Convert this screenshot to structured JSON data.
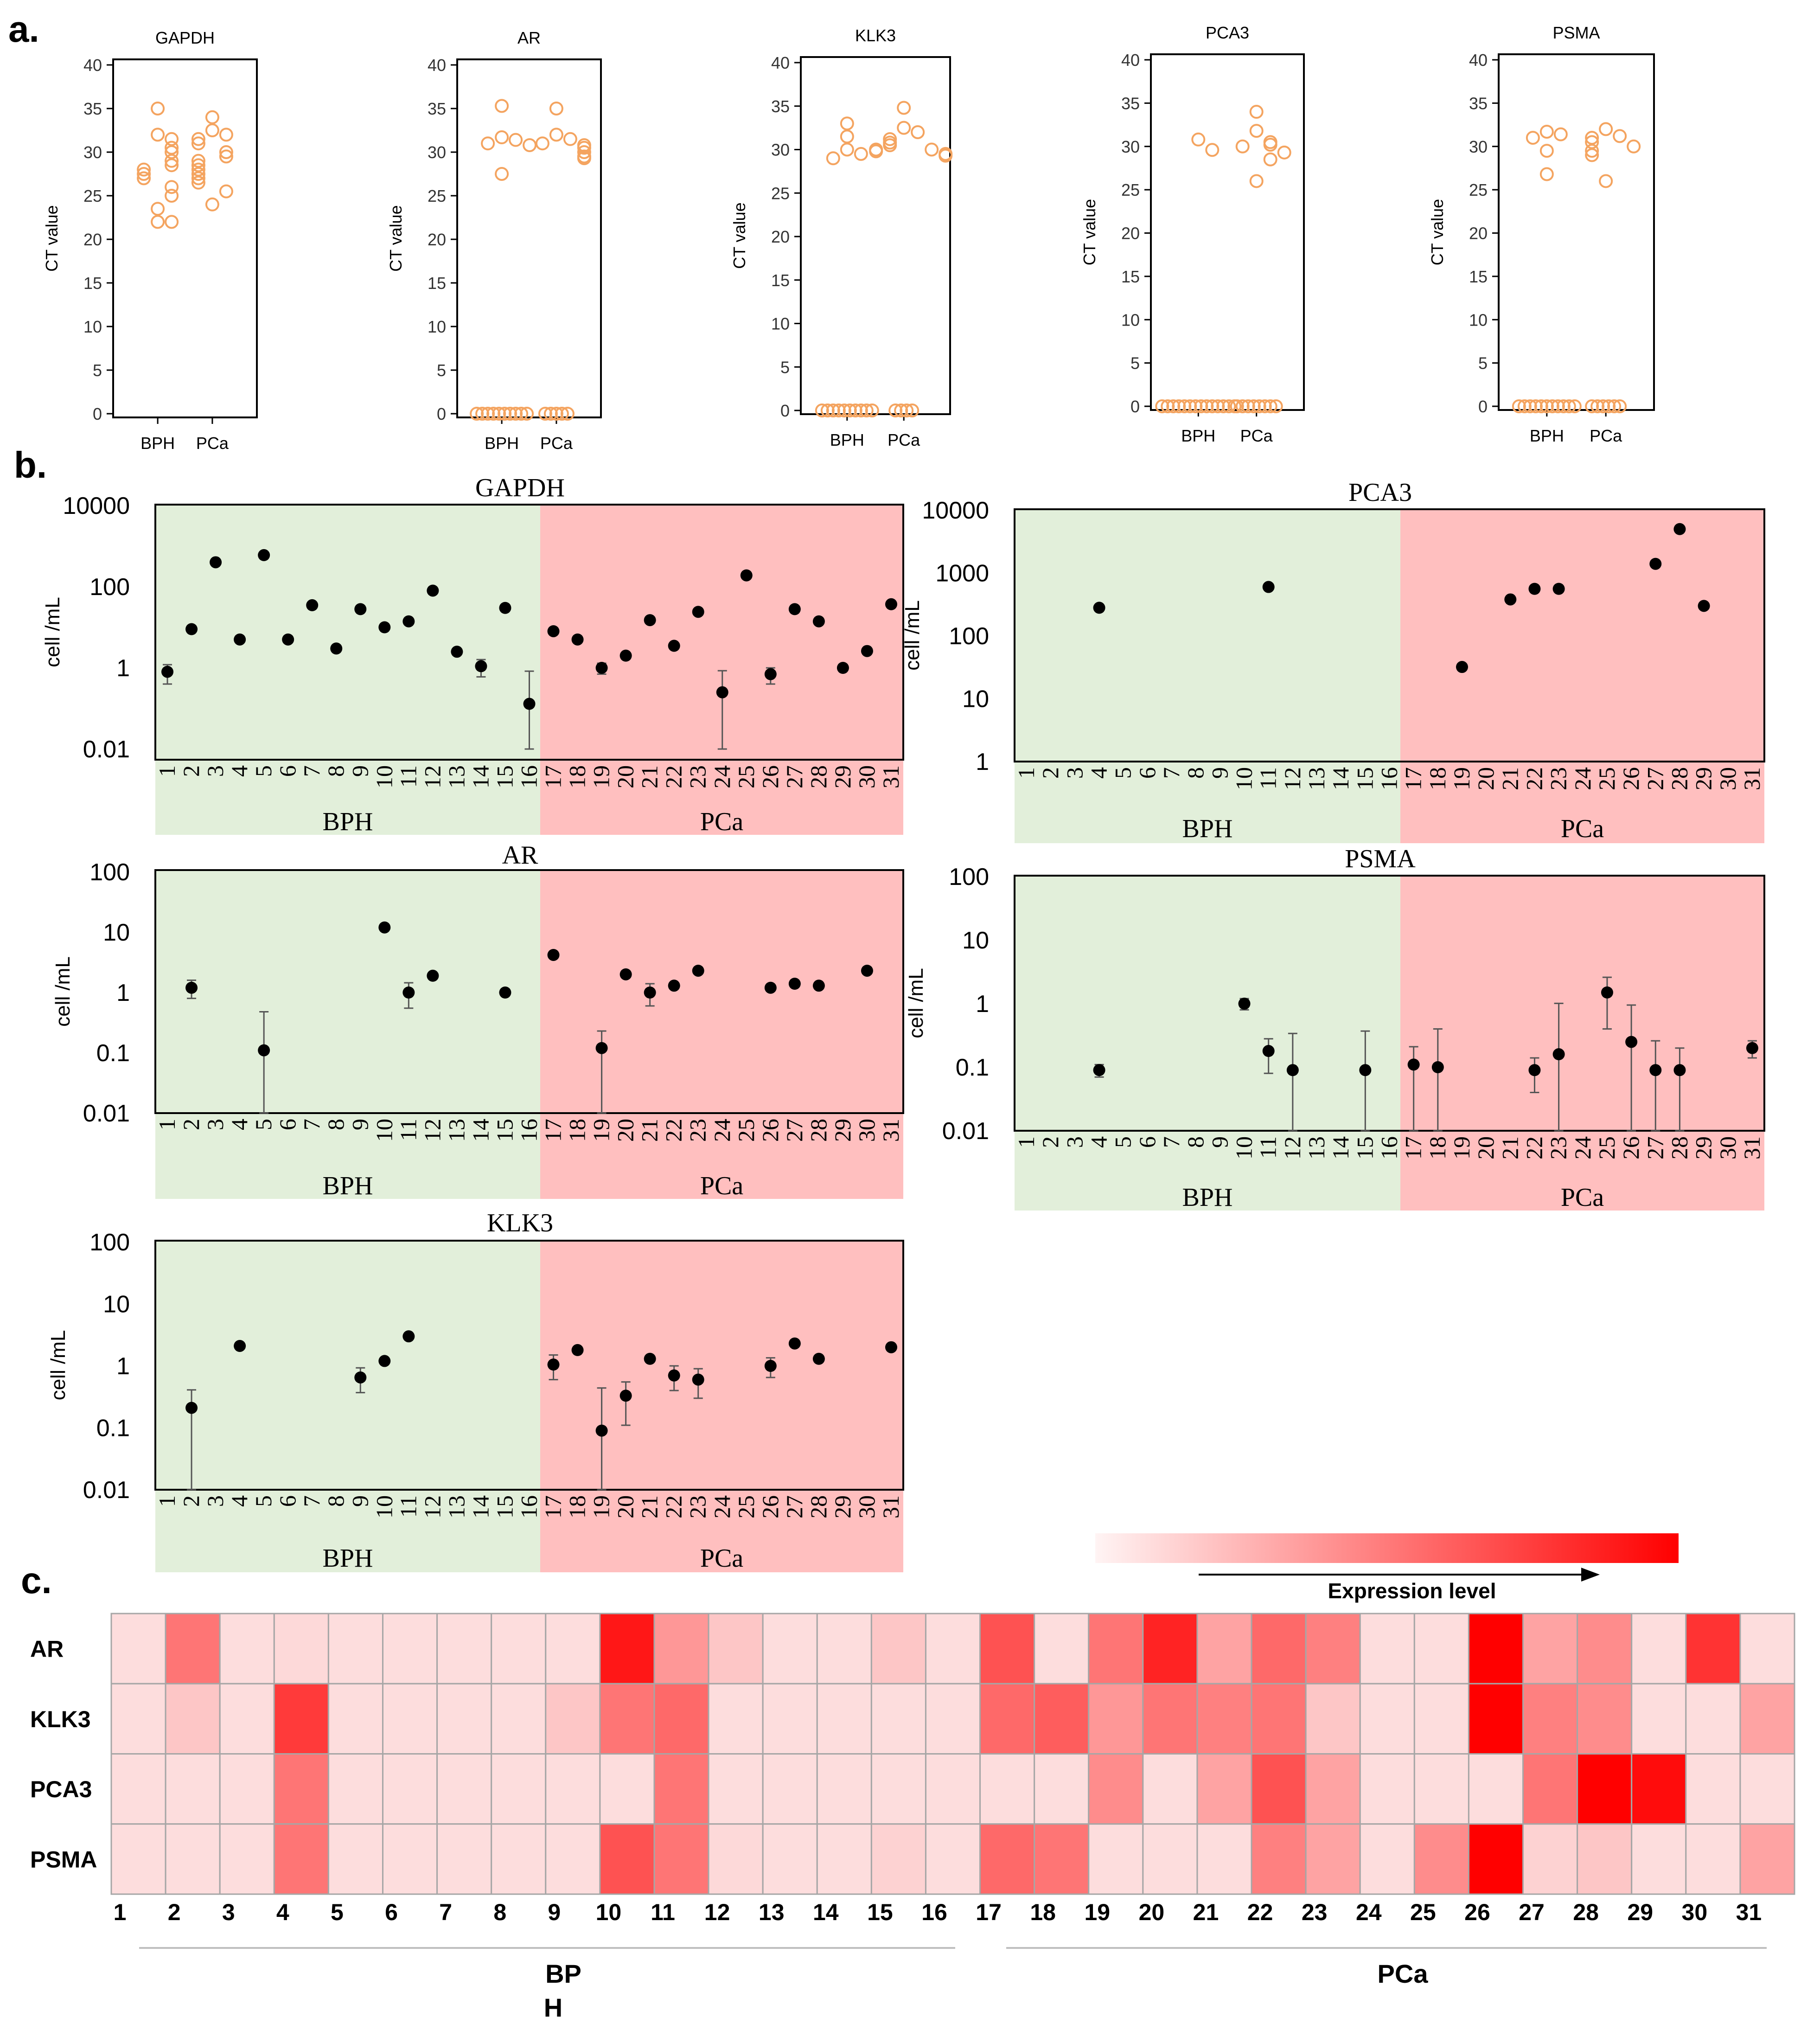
{
  "figure": {
    "panel_labels": [
      "a.",
      "b.",
      "c."
    ],
    "ct_axis_label": "CT value",
    "cell_axis_label": "cell /mL",
    "group_bph": "BPH",
    "group_pca": "PCa",
    "heatmap_group_bph_line1": "BP",
    "heatmap_group_bph_line2": "H",
    "heatmap_group_pca": "PCa",
    "colorbar_label": "Expression level",
    "colors": {
      "ct_marker": "#f4a460",
      "bph_bg": "#e2efda",
      "pca_bg": "#ffbfbf",
      "heat_high": "#ff0000",
      "heat_low": "#fde9e9"
    }
  },
  "chart_data": [
    {
      "type": "scatter",
      "panel": "a",
      "title": "GAPDH",
      "ylabel": "CT value",
      "categories": [
        "BPH",
        "PCa"
      ],
      "ylim": [
        0,
        40
      ],
      "yticks": [
        0,
        5,
        10,
        15,
        20,
        25,
        30,
        35,
        40
      ],
      "series": [
        {
          "name": "BPH",
          "values": [
            35,
            32,
            31.5,
            30.5,
            30,
            29,
            28.5,
            28,
            27.5,
            27,
            26,
            25,
            23.5,
            22,
            22
          ]
        },
        {
          "name": "PCa",
          "values": [
            34,
            32.5,
            32,
            31.5,
            31,
            30,
            29.5,
            29,
            28.5,
            28,
            27.5,
            27,
            26.5,
            25.5,
            24
          ]
        }
      ]
    },
    {
      "type": "scatter",
      "panel": "a",
      "title": "AR",
      "ylabel": "CT value",
      "categories": [
        "BPH",
        "PCa"
      ],
      "ylim": [
        0,
        40
      ],
      "yticks": [
        0,
        5,
        10,
        15,
        20,
        25,
        30,
        35,
        40
      ],
      "series": [
        {
          "name": "BPH",
          "values": [
            35.3,
            31.7,
            31.4,
            31,
            30.8,
            27.5,
            0,
            0,
            0,
            0,
            0,
            0,
            0,
            0,
            0,
            0
          ]
        },
        {
          "name": "PCa",
          "values": [
            35,
            32,
            31.5,
            31,
            30.8,
            30.5,
            30,
            29.5,
            29.3,
            0,
            0,
            0,
            0,
            0
          ]
        }
      ]
    },
    {
      "type": "scatter",
      "panel": "a",
      "title": "KLK3",
      "ylabel": "CT value",
      "categories": [
        "BPH",
        "PCa"
      ],
      "ylim": [
        0,
        40
      ],
      "yticks": [
        0,
        5,
        10,
        15,
        20,
        25,
        30,
        35,
        40
      ],
      "series": [
        {
          "name": "BPH",
          "values": [
            33,
            31.5,
            30,
            29.5,
            29,
            0,
            0,
            0,
            0,
            0,
            0,
            0,
            0,
            0,
            0
          ]
        },
        {
          "name": "PCa",
          "values": [
            34.8,
            32.5,
            32,
            31.2,
            30.8,
            30.5,
            30,
            30,
            29.8,
            29.5,
            29.3,
            0,
            0,
            0,
            0
          ]
        }
      ]
    },
    {
      "type": "scatter",
      "panel": "a",
      "title": "PCA3",
      "ylabel": "CT value",
      "categories": [
        "BPH",
        "PCa"
      ],
      "ylim": [
        0,
        40
      ],
      "yticks": [
        0,
        5,
        10,
        15,
        20,
        25,
        30,
        35,
        40
      ],
      "series": [
        {
          "name": "BPH",
          "values": [
            30.8,
            29.6,
            0,
            0,
            0,
            0,
            0,
            0,
            0,
            0,
            0,
            0,
            0,
            0,
            0,
            0
          ]
        },
        {
          "name": "PCa",
          "values": [
            34,
            31.8,
            30.5,
            30.2,
            30,
            29.3,
            28.5,
            26,
            0,
            0,
            0,
            0,
            0,
            0,
            0,
            0
          ]
        }
      ]
    },
    {
      "type": "scatter",
      "panel": "a",
      "title": "PSMA",
      "ylabel": "CT value",
      "categories": [
        "BPH",
        "PCa"
      ],
      "ylim": [
        0,
        40
      ],
      "yticks": [
        0,
        5,
        10,
        15,
        20,
        25,
        30,
        35,
        40
      ],
      "series": [
        {
          "name": "BPH",
          "values": [
            31.7,
            31.4,
            31,
            29.5,
            26.8,
            0,
            0,
            0,
            0,
            0,
            0,
            0,
            0,
            0,
            0,
            0
          ]
        },
        {
          "name": "PCa",
          "values": [
            32,
            31.2,
            31,
            30.5,
            30,
            29.5,
            29,
            26,
            0,
            0,
            0,
            0,
            0,
            0
          ]
        }
      ]
    },
    {
      "type": "scatter",
      "panel": "b",
      "title": "GAPDH",
      "ylabel": "cell /mL",
      "yscale": "log",
      "ylim": [
        0.01,
        10000
      ],
      "yticklabels": [
        "0.01",
        "1",
        "100",
        "10000"
      ],
      "groups": [
        {
          "name": "BPH",
          "samples": [
            1,
            16
          ]
        },
        {
          "name": "PCa",
          "samples": [
            17,
            31
          ]
        }
      ],
      "samples": [
        1,
        2,
        3,
        4,
        5,
        6,
        7,
        8,
        9,
        10,
        11,
        12,
        13,
        14,
        15,
        16,
        17,
        18,
        19,
        20,
        21,
        22,
        23,
        24,
        25,
        26,
        27,
        28,
        29,
        30,
        31
      ],
      "values": [
        0.8,
        9,
        400,
        5,
        600,
        5,
        35,
        3,
        28,
        10,
        14,
        80,
        2.5,
        1.1,
        30,
        0.13,
        8,
        5,
        1,
        2,
        15,
        3.5,
        24,
        0.25,
        190,
        0.7,
        28,
        14,
        1,
        2.6,
        37
      ],
      "errors": [
        0.4,
        0,
        0,
        0,
        0,
        0,
        0,
        0,
        0,
        0,
        0,
        0,
        0,
        0.5,
        0,
        0.7,
        0,
        0,
        0.3,
        0,
        0,
        0,
        0,
        0.6,
        0,
        0.3,
        0,
        0,
        0,
        0,
        0
      ]
    },
    {
      "type": "scatter",
      "panel": "b",
      "title": "PCA3",
      "ylabel": "cell /mL",
      "yscale": "log",
      "ylim": [
        1,
        10000
      ],
      "yticklabels": [
        "1",
        "10",
        "100",
        "1000",
        "10000"
      ],
      "groups": [
        {
          "name": "BPH",
          "samples": [
            1,
            16
          ]
        },
        {
          "name": "PCa",
          "samples": [
            17,
            31
          ]
        }
      ],
      "samples": [
        1,
        2,
        3,
        4,
        5,
        6,
        7,
        8,
        9,
        10,
        11,
        12,
        13,
        14,
        15,
        16,
        17,
        18,
        19,
        20,
        21,
        22,
        23,
        24,
        25,
        26,
        27,
        28,
        29,
        30,
        31
      ],
      "values": [
        null,
        null,
        null,
        280,
        null,
        null,
        null,
        null,
        null,
        null,
        600,
        null,
        null,
        null,
        null,
        null,
        null,
        null,
        32,
        null,
        380,
        560,
        560,
        null,
        null,
        null,
        1400,
        5000,
        300,
        null,
        null
      ],
      "errors": [
        0,
        0,
        0,
        0,
        0,
        0,
        0,
        0,
        0,
        0,
        0,
        0,
        0,
        0,
        0,
        0,
        0,
        0,
        0,
        0,
        0,
        0,
        0,
        0,
        0,
        0,
        0,
        0,
        0,
        0,
        0
      ]
    },
    {
      "type": "scatter",
      "panel": "b",
      "title": "AR",
      "ylabel": "cell /mL",
      "yscale": "log",
      "ylim": [
        0.01,
        100
      ],
      "yticklabels": [
        "0.01",
        "0.1",
        "1",
        "10",
        "100"
      ],
      "groups": [
        {
          "name": "BPH",
          "samples": [
            1,
            16
          ]
        },
        {
          "name": "PCa",
          "samples": [
            17,
            31
          ]
        }
      ],
      "samples": [
        1,
        2,
        3,
        4,
        5,
        6,
        7,
        8,
        9,
        10,
        11,
        12,
        13,
        14,
        15,
        16,
        17,
        18,
        19,
        20,
        21,
        22,
        23,
        24,
        25,
        26,
        27,
        28,
        29,
        30,
        31
      ],
      "values": [
        null,
        1.2,
        null,
        null,
        0.11,
        null,
        null,
        null,
        null,
        12,
        1,
        1.9,
        null,
        null,
        1,
        null,
        4.2,
        null,
        0.12,
        2,
        1,
        1.3,
        2.3,
        null,
        null,
        1.2,
        1.4,
        1.3,
        null,
        2.3,
        null
      ],
      "errors": [
        0,
        0.4,
        0,
        0,
        0.37,
        0,
        0,
        0,
        0,
        0,
        0.45,
        0,
        0,
        0,
        0,
        0,
        0,
        0,
        0.11,
        0,
        0.4,
        0,
        0,
        0,
        0,
        0,
        0,
        0,
        0,
        0,
        0
      ]
    },
    {
      "type": "scatter",
      "panel": "b",
      "title": "PSMA",
      "ylabel": "cell /mL",
      "yscale": "log",
      "ylim": [
        0.01,
        100
      ],
      "yticklabels": [
        "0.01",
        "0.1",
        "1",
        "10",
        "100"
      ],
      "groups": [
        {
          "name": "BPH",
          "samples": [
            1,
            16
          ]
        },
        {
          "name": "PCa",
          "samples": [
            17,
            31
          ]
        }
      ],
      "samples": [
        1,
        2,
        3,
        4,
        5,
        6,
        7,
        8,
        9,
        10,
        11,
        12,
        13,
        14,
        15,
        16,
        17,
        18,
        19,
        20,
        21,
        22,
        23,
        24,
        25,
        26,
        27,
        28,
        29,
        30,
        31
      ],
      "values": [
        null,
        null,
        null,
        0.09,
        null,
        null,
        null,
        null,
        null,
        1,
        0.18,
        0.09,
        null,
        null,
        0.09,
        null,
        0.11,
        0.1,
        null,
        null,
        null,
        0.09,
        0.16,
        null,
        1.5,
        0.25,
        0.09,
        0.09,
        null,
        null,
        0.2
      ],
      "errors": [
        0,
        0,
        0,
        0.02,
        0,
        0,
        0,
        0,
        0,
        0.2,
        0.1,
        0.25,
        0,
        0,
        0.28,
        0,
        0.1,
        0.3,
        0,
        0,
        0,
        0.05,
        0.85,
        0,
        1.1,
        0.7,
        0.17,
        0.11,
        0,
        0,
        0.06
      ]
    },
    {
      "type": "scatter",
      "panel": "b",
      "title": "KLK3",
      "ylabel": "cell /mL",
      "yscale": "log",
      "ylim": [
        0.01,
        100
      ],
      "yticklabels": [
        "0.01",
        "0.1",
        "1",
        "10",
        "100"
      ],
      "groups": [
        {
          "name": "BPH",
          "samples": [
            1,
            16
          ]
        },
        {
          "name": "PCa",
          "samples": [
            17,
            31
          ]
        }
      ],
      "samples": [
        1,
        2,
        3,
        4,
        5,
        6,
        7,
        8,
        9,
        10,
        11,
        12,
        13,
        14,
        15,
        16,
        17,
        18,
        19,
        20,
        21,
        22,
        23,
        24,
        25,
        26,
        27,
        28,
        29,
        30,
        31
      ],
      "values": [
        null,
        0.21,
        null,
        2.1,
        null,
        null,
        null,
        null,
        0.65,
        1.2,
        3,
        null,
        null,
        null,
        null,
        null,
        1.05,
        1.8,
        0.09,
        0.33,
        1.3,
        0.7,
        0.6,
        null,
        null,
        1,
        2.3,
        1.3,
        null,
        null,
        2
      ],
      "errors": [
        0,
        0.2,
        0,
        0,
        0,
        0,
        0,
        0,
        0.28,
        0,
        0,
        0,
        0,
        0,
        0,
        0,
        0.45,
        0,
        0.35,
        0.22,
        0,
        0.3,
        0.3,
        0,
        0,
        0.35,
        0,
        0,
        0,
        0,
        0
      ]
    },
    {
      "type": "heatmap",
      "panel": "c",
      "rows": [
        "AR",
        "KLK3",
        "PCA3",
        "PSMA"
      ],
      "columns": [
        1,
        2,
        3,
        4,
        5,
        6,
        7,
        8,
        9,
        10,
        11,
        12,
        13,
        14,
        15,
        16,
        17,
        18,
        19,
        20,
        21,
        22,
        23,
        24,
        25,
        26,
        27,
        28,
        29,
        30,
        31
      ],
      "values": [
        [
          0.05,
          0.5,
          0.05,
          0.07,
          0.05,
          0.05,
          0.05,
          0.05,
          0.05,
          0.9,
          0.35,
          0.15,
          0.05,
          0.05,
          0.15,
          0.05,
          0.65,
          0.05,
          0.5,
          0.85,
          0.3,
          0.55,
          0.45,
          0.05,
          0.05,
          1.0,
          0.3,
          0.4,
          0.05,
          0.78,
          0.05
        ],
        [
          0.05,
          0.15,
          0.05,
          0.75,
          0.05,
          0.05,
          0.05,
          0.05,
          0.15,
          0.5,
          0.55,
          0.05,
          0.05,
          0.05,
          0.05,
          0.05,
          0.55,
          0.6,
          0.35,
          0.5,
          0.45,
          0.5,
          0.15,
          0.05,
          0.05,
          1.0,
          0.45,
          0.4,
          0.05,
          0.05,
          0.3
        ],
        [
          0.05,
          0.05,
          0.05,
          0.5,
          0.05,
          0.05,
          0.05,
          0.05,
          0.05,
          0.05,
          0.5,
          0.05,
          0.05,
          0.05,
          0.05,
          0.05,
          0.05,
          0.05,
          0.4,
          0.05,
          0.3,
          0.65,
          0.3,
          0.05,
          0.05,
          0.05,
          0.5,
          1.0,
          0.95,
          0.05,
          0.05
        ],
        [
          0.05,
          0.05,
          0.05,
          0.5,
          0.05,
          0.05,
          0.05,
          0.05,
          0.05,
          0.65,
          0.5,
          0.07,
          0.05,
          0.05,
          0.1,
          0.05,
          0.55,
          0.5,
          0.05,
          0.05,
          0.05,
          0.45,
          0.3,
          0.05,
          0.4,
          1.0,
          0.1,
          0.15,
          0.05,
          0.05,
          0.3
        ]
      ]
    }
  ]
}
